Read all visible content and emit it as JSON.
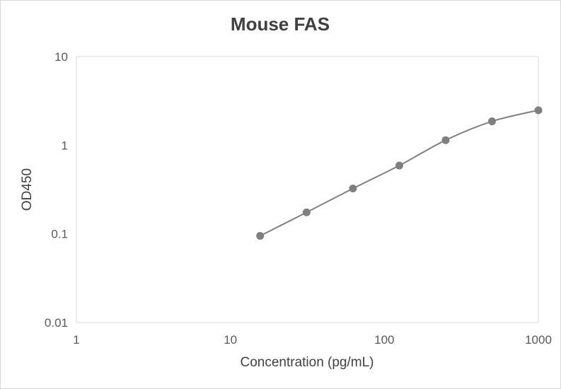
{
  "chart_data": {
    "type": "scatter",
    "title": "Mouse FAS",
    "xlabel": "Concentration (pg/mL)",
    "ylabel": "OD450",
    "x_scale": "log",
    "y_scale": "log",
    "xlim": [
      1,
      1000
    ],
    "ylim": [
      0.01,
      10
    ],
    "x_ticks": [
      1,
      10,
      100,
      1000
    ],
    "x_tick_labels": [
      "1",
      "10",
      "100",
      "1000"
    ],
    "y_ticks": [
      0.01,
      0.1,
      1,
      10
    ],
    "y_tick_labels": [
      "0.01",
      "0.1",
      "1",
      "10"
    ],
    "grid": false,
    "smooth_line": true,
    "series": [
      {
        "x": [
          15.6,
          31.25,
          62.5,
          125,
          250,
          500,
          1000
        ],
        "y": [
          0.095,
          0.175,
          0.325,
          0.59,
          1.14,
          1.86,
          2.48
        ]
      }
    ],
    "colors": {
      "series": "#808080",
      "frame": "#d9d9d9",
      "plot_border": "#d9d9d9"
    }
  }
}
